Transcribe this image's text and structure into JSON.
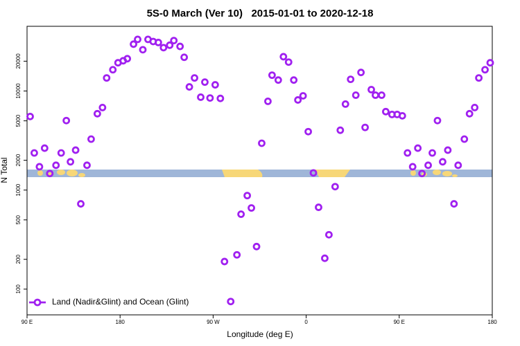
{
  "chart_data": {
    "type": "scatter",
    "title": "5S-0 March (Ver 10)   2015-01-01 to 2020-12-18",
    "x_label": "Longitude (deg E)",
    "y_label": "N Total",
    "log_y": true,
    "legend": "lower left",
    "xlim": [
      90,
      540
    ],
    "ylim": [
      55,
      45000
    ],
    "xticks": [
      {
        "value": 90,
        "label": "90 E"
      },
      180,
      {
        "value": 270,
        "label": "90 W"
      },
      {
        "value": 360,
        "label": "0"
      },
      {
        "value": 450,
        "label": "90 E"
      },
      {
        "value": 540,
        "label": "180"
      }
    ],
    "yticks": [
      100,
      200,
      500,
      1000,
      2000,
      5000,
      10000,
      20000
    ],
    "series": [
      {
        "name": "Land (Nadir&Glint) and Ocean (Glint)",
        "color": "#a020f0",
        "x": [
          93,
          97,
          102,
          107,
          112,
          118,
          123,
          128,
          132,
          137,
          142,
          148,
          152,
          158,
          163,
          167,
          173,
          178,
          183,
          187,
          193,
          197,
          202,
          207,
          212,
          217,
          222,
          228,
          232,
          238,
          242,
          247,
          252,
          258,
          262,
          267,
          272,
          277,
          281,
          287,
          293,
          297,
          303,
          307,
          312,
          317,
          323,
          327,
          333,
          338,
          343,
          348,
          352,
          357,
          362,
          367,
          372,
          378,
          382,
          388,
          393,
          398,
          403,
          408,
          413,
          417,
          423,
          427,
          433,
          437,
          443,
          448,
          453,
          458,
          463,
          468,
          472,
          478,
          482,
          487,
          492,
          497,
          503,
          507,
          513,
          518,
          523,
          527,
          533,
          538
        ],
        "values": [
          5530,
          2370,
          1720,
          2650,
          1470,
          1780,
          2370,
          5030,
          1930,
          2530,
          726,
          1780,
          3270,
          5900,
          6810,
          13550,
          16400,
          19280,
          20200,
          21200,
          29700,
          33200,
          26100,
          33200,
          31600,
          30900,
          27400,
          29000,
          32300,
          28200,
          21900,
          11000,
          13550,
          8660,
          12300,
          8500,
          11550,
          8420,
          190,
          75,
          222,
          571,
          880,
          660,
          269,
          2970,
          7870,
          14450,
          12900,
          22200,
          19580,
          12900,
          8120,
          8940,
          3890,
          1490,
          670,
          205,
          354,
          1083,
          4020,
          7380,
          13120,
          9080,
          15400,
          4290,
          10330,
          9080,
          9080,
          6190,
          5800,
          5800,
          5620,
          2370,
          1720,
          2650,
          1470,
          1780,
          2370,
          5030,
          1930,
          2530,
          726,
          1780,
          3270,
          5900,
          6810,
          13550,
          16400,
          19280
        ]
      }
    ]
  }
}
